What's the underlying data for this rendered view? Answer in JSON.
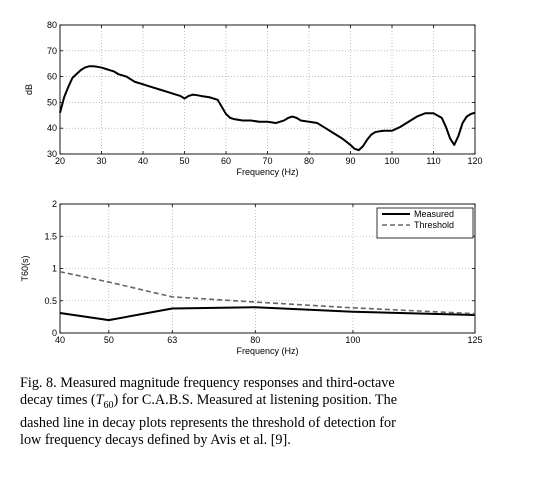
{
  "chart_data": [
    {
      "type": "line",
      "xlabel": "Frequency (Hz)",
      "ylabel": "dB",
      "xlim": [
        20,
        120
      ],
      "ylim": [
        30,
        80
      ],
      "xticks": [
        20,
        30,
        40,
        50,
        60,
        70,
        80,
        90,
        100,
        110,
        120
      ],
      "yticks": [
        30,
        40,
        50,
        60,
        70,
        80
      ],
      "grid": true,
      "series": [
        {
          "color": "#000000",
          "style": "solid",
          "x": [
            20,
            21,
            22,
            23,
            24,
            25,
            26,
            27,
            28,
            29,
            30,
            31,
            32,
            33,
            34,
            35,
            36,
            37,
            38,
            40,
            42,
            44,
            46,
            48,
            49,
            50,
            51,
            52,
            53,
            54,
            56,
            58,
            60,
            61,
            62,
            64,
            66,
            68,
            70,
            72,
            74,
            75,
            76,
            77,
            78,
            80,
            82,
            84,
            86,
            88,
            90,
            91,
            92,
            93,
            94,
            95,
            96,
            97,
            98,
            100,
            102,
            104,
            106,
            108,
            110,
            112,
            113,
            114,
            115,
            116,
            117,
            118,
            119,
            120
          ],
          "y": [
            46,
            52,
            56,
            59.5,
            61,
            62.5,
            63.5,
            64,
            64,
            63.8,
            63.5,
            63,
            62.5,
            62,
            61,
            60.5,
            60,
            59,
            58,
            57,
            56,
            55,
            54,
            53,
            52.5,
            51.5,
            52.5,
            53,
            52.8,
            52.5,
            52,
            51,
            45.5,
            44,
            43.5,
            43,
            43,
            42.5,
            42.5,
            42,
            43,
            44,
            44.5,
            44,
            43,
            42.5,
            42,
            40,
            38,
            36,
            33.5,
            32,
            31.5,
            33,
            35.5,
            37.5,
            38.5,
            38.8,
            39,
            39,
            40.5,
            42.5,
            44.5,
            45.8,
            45.8,
            44,
            40.5,
            36,
            33.5,
            37,
            42,
            44.5,
            45.5,
            46
          ]
        }
      ]
    },
    {
      "type": "line",
      "xlabel": "Frequency (Hz)",
      "ylabel": "T60(s)",
      "x": [
        40,
        50,
        63,
        80,
        100,
        125
      ],
      "xlim": [
        40,
        125
      ],
      "ylim": [
        0,
        2
      ],
      "xticks": [
        40,
        50,
        63,
        80,
        100,
        125
      ],
      "yticks": [
        0,
        0.5,
        1,
        1.5,
        2
      ],
      "grid": true,
      "legend": "top-right",
      "series": [
        {
          "name": "Measured",
          "color": "#000000",
          "style": "solid",
          "values": [
            0.31,
            0.2,
            0.38,
            0.4,
            0.33,
            0.28
          ]
        },
        {
          "name": "Threshold",
          "color": "#666666",
          "style": "dashed",
          "values": [
            0.95,
            0.79,
            0.56,
            0.48,
            0.39,
            0.3
          ]
        }
      ]
    }
  ],
  "caption": {
    "line1": "Fig. 8. Measured magnitude frequency responses and third-octave",
    "line2_a": "decay times (",
    "line2_t": "T",
    "line2_sub": "60",
    "line2_b": ") for C.A.B.S. Measured at listening position. The",
    "line3": "dashed line in decay plots represents the threshold of detection for",
    "line4": "low frequency decays defined by Avis et al. [9]."
  }
}
